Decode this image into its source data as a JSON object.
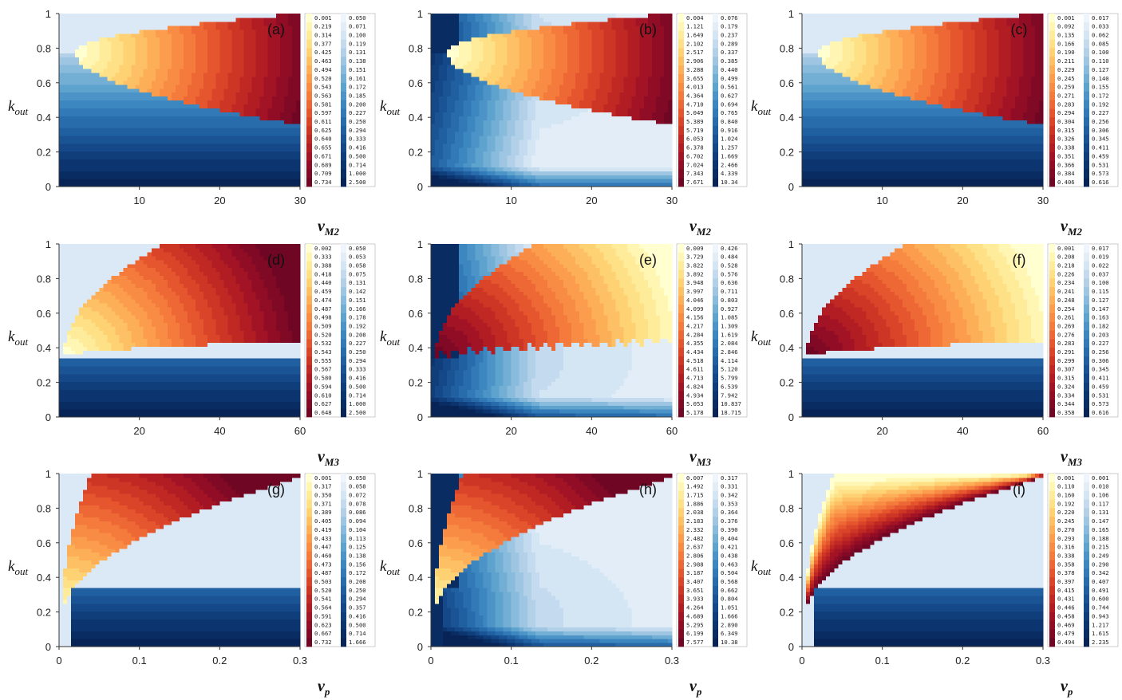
{
  "chart_data": [
    {
      "id": "a",
      "type": "heatmap",
      "panel_label": "(a)",
      "ylabel": "k",
      "ylabel_sub": "out",
      "xlabel": "v",
      "xlabel_sub": "M2",
      "xlim": [
        0,
        30
      ],
      "ylim": [
        0,
        1
      ],
      "xticks": [
        "10",
        "20",
        "30"
      ],
      "yticks": [
        "0",
        "0.2",
        "0.4",
        "0.6",
        "0.8",
        "1"
      ],
      "boundary": "cap",
      "cap": {
        "vertex_x": 2,
        "vertex_y": 0.78,
        "x_ref": 30,
        "y_top_ref": 1.0,
        "y_bot_ref": 0.36
      },
      "boundary_jagged": false,
      "interior_gradient": "radial",
      "exterior_gradient": "vertical",
      "colorbar_warm": [
        "0.001",
        "0.219",
        "0.314",
        "0.377",
        "0.425",
        "0.463",
        "0.494",
        "0.520",
        "0.543",
        "0.563",
        "0.581",
        "0.597",
        "0.611",
        "0.625",
        "0.640",
        "0.655",
        "0.671",
        "0.689",
        "0.709",
        "0.734"
      ],
      "colorbar_cool": [
        "0.050",
        "0.071",
        "0.100",
        "0.119",
        "0.131",
        "0.138",
        "0.151",
        "0.161",
        "0.172",
        "0.185",
        "0.200",
        "0.227",
        "0.250",
        "0.294",
        "0.333",
        "0.416",
        "0.500",
        "0.714",
        "1.000",
        "2.500"
      ]
    },
    {
      "id": "b",
      "type": "heatmap",
      "panel_label": "(b)",
      "ylabel": "k",
      "ylabel_sub": "out",
      "xlabel": "v",
      "xlabel_sub": "M2",
      "xlim": [
        0,
        30
      ],
      "ylim": [
        0,
        1
      ],
      "xticks": [
        "10",
        "20",
        "30"
      ],
      "yticks": [
        "0",
        "0.2",
        "0.4",
        "0.6",
        "0.8",
        "1"
      ],
      "boundary": "cap",
      "cap": {
        "vertex_x": 2,
        "vertex_y": 0.78,
        "x_ref": 30,
        "y_top_ref": 1.0,
        "y_bot_ref": 0.36
      },
      "boundary_jagged": false,
      "interior_gradient": "radial",
      "exterior_gradient": "arc-light",
      "colorbar_warm": [
        "0.004",
        "1.121",
        "1.649",
        "2.102",
        "2.517",
        "2.906",
        "3.288",
        "3.655",
        "4.013",
        "4.364",
        "4.710",
        "5.049",
        "5.389",
        "5.719",
        "6.053",
        "6.378",
        "6.702",
        "7.024",
        "7.343",
        "7.671"
      ],
      "colorbar_cool": [
        "0.076",
        "0.179",
        "0.237",
        "0.289",
        "0.337",
        "0.385",
        "0.440",
        "0.499",
        "0.561",
        "0.627",
        "0.694",
        "0.765",
        "0.840",
        "0.916",
        "1.024",
        "1.257",
        "1.669",
        "2.466",
        "4.339",
        "10.34"
      ]
    },
    {
      "id": "c",
      "type": "heatmap",
      "panel_label": "(c)",
      "ylabel": "k",
      "ylabel_sub": "out",
      "xlabel": "v",
      "xlabel_sub": "M2",
      "xlim": [
        0,
        30
      ],
      "ylim": [
        0,
        1
      ],
      "xticks": [
        "10",
        "20",
        "30"
      ],
      "yticks": [
        "0",
        "0.2",
        "0.4",
        "0.6",
        "0.8",
        "1"
      ],
      "boundary": "cap",
      "cap": {
        "vertex_x": 2,
        "vertex_y": 0.78,
        "x_ref": 30,
        "y_top_ref": 1.0,
        "y_bot_ref": 0.36
      },
      "boundary_jagged": false,
      "interior_gradient": "radial",
      "exterior_gradient": "vertical",
      "colorbar_warm": [
        "0.001",
        "0.092",
        "0.135",
        "0.166",
        "0.190",
        "0.211",
        "0.229",
        "0.245",
        "0.259",
        "0.271",
        "0.283",
        "0.294",
        "0.304",
        "0.315",
        "0.326",
        "0.338",
        "0.351",
        "0.366",
        "0.384",
        "0.406"
      ],
      "colorbar_cool": [
        "0.017",
        "0.033",
        "0.062",
        "0.085",
        "0.100",
        "0.110",
        "0.127",
        "0.140",
        "0.155",
        "0.172",
        "0.192",
        "0.227",
        "0.256",
        "0.306",
        "0.345",
        "0.411",
        "0.459",
        "0.531",
        "0.573",
        "0.616"
      ]
    },
    {
      "id": "d",
      "type": "heatmap",
      "panel_label": "(d)",
      "ylabel": "k",
      "ylabel_sub": "out",
      "xlabel": "v",
      "xlabel_sub": "M3",
      "xlim": [
        0,
        60
      ],
      "ylim": [
        0,
        1
      ],
      "xticks": [
        "20",
        "40",
        "60"
      ],
      "yticks": [
        "0",
        "0.2",
        "0.4",
        "0.6",
        "0.8",
        "1"
      ],
      "boundary": "cap",
      "cap": {
        "vertex_x": 1,
        "vertex_y": 0.35,
        "x_ref": 60,
        "y_top_ref": 1.35,
        "y_bot_ref": 0.44
      },
      "boundary_jagged": false,
      "interior_gradient": "radial",
      "exterior_gradient": "vertical",
      "colorbar_warm": [
        "0.002",
        "0.333",
        "0.388",
        "0.418",
        "0.440",
        "0.459",
        "0.474",
        "0.487",
        "0.498",
        "0.509",
        "0.520",
        "0.532",
        "0.543",
        "0.555",
        "0.567",
        "0.580",
        "0.594",
        "0.610",
        "0.627",
        "0.648"
      ],
      "colorbar_cool": [
        "0.050",
        "0.053",
        "0.058",
        "0.075",
        "0.131",
        "0.142",
        "0.151",
        "0.166",
        "0.178",
        "0.192",
        "0.208",
        "0.227",
        "0.250",
        "0.294",
        "0.333",
        "0.416",
        "0.500",
        "0.714",
        "1.000",
        "2.500"
      ]
    },
    {
      "id": "e",
      "type": "heatmap",
      "panel_label": "(e)",
      "ylabel": "k",
      "ylabel_sub": "out",
      "xlabel": "v",
      "xlabel_sub": "M3",
      "xlim": [
        0,
        60
      ],
      "ylim": [
        0,
        1
      ],
      "xticks": [
        "20",
        "40",
        "60"
      ],
      "yticks": [
        "0",
        "0.2",
        "0.4",
        "0.6",
        "0.8",
        "1"
      ],
      "boundary": "cap",
      "cap": {
        "vertex_x": 1,
        "vertex_y": 0.35,
        "x_ref": 60,
        "y_top_ref": 1.35,
        "y_bot_ref": 0.44
      },
      "boundary_jagged": true,
      "interior_gradient": "radial-inverted",
      "exterior_gradient": "arc-light",
      "colorbar_warm": [
        "0.009",
        "3.729",
        "3.822",
        "3.892",
        "3.948",
        "3.997",
        "4.046",
        "4.099",
        "4.156",
        "4.217",
        "4.284",
        "4.355",
        "4.434",
        "4.518",
        "4.611",
        "4.713",
        "4.824",
        "4.934",
        "5.053",
        "5.178"
      ],
      "colorbar_cool": [
        "0.426",
        "0.484",
        "0.528",
        "0.576",
        "0.636",
        "0.711",
        "0.803",
        "0.927",
        "1.085",
        "1.309",
        "1.619",
        "2.084",
        "2.846",
        "4.114",
        "5.120",
        "5.799",
        "6.539",
        "7.942",
        "10.837",
        "18.715"
      ]
    },
    {
      "id": "f",
      "type": "heatmap",
      "panel_label": "(f)",
      "ylabel": "k",
      "ylabel_sub": "out",
      "xlabel": "v",
      "xlabel_sub": "M3",
      "xlim": [
        0,
        60
      ],
      "ylim": [
        0,
        1
      ],
      "xticks": [
        "20",
        "40",
        "60"
      ],
      "yticks": [
        "0",
        "0.2",
        "0.4",
        "0.6",
        "0.8",
        "1"
      ],
      "boundary": "cap",
      "cap": {
        "vertex_x": 1,
        "vertex_y": 0.35,
        "x_ref": 60,
        "y_top_ref": 1.35,
        "y_bot_ref": 0.44
      },
      "boundary_jagged": false,
      "interior_gradient": "radial-inverted",
      "exterior_gradient": "vertical",
      "colorbar_warm": [
        "0.001",
        "0.208",
        "0.218",
        "0.226",
        "0.234",
        "0.241",
        "0.248",
        "0.254",
        "0.261",
        "0.269",
        "0.276",
        "0.283",
        "0.291",
        "0.299",
        "0.307",
        "0.315",
        "0.324",
        "0.334",
        "0.344",
        "0.358"
      ],
      "colorbar_cool": [
        "0.017",
        "0.019",
        "0.022",
        "0.037",
        "0.100",
        "0.115",
        "0.127",
        "0.147",
        "0.163",
        "0.182",
        "0.203",
        "0.227",
        "0.256",
        "0.306",
        "0.345",
        "0.411",
        "0.459",
        "0.531",
        "0.573",
        "0.616"
      ]
    },
    {
      "id": "g",
      "type": "heatmap",
      "panel_label": "(g)",
      "ylabel": "k",
      "ylabel_sub": "out",
      "xlabel": "v",
      "xlabel_sub": "p",
      "xlim": [
        0,
        0.3
      ],
      "ylim": [
        0,
        1
      ],
      "xticks": [
        "0",
        "0.1",
        "0.2",
        "0.3"
      ],
      "yticks": [
        "0",
        "0.2",
        "0.4",
        "0.6",
        "0.8",
        "1"
      ],
      "boundary": "wedge",
      "wedge": {
        "vertex_x": 0.003,
        "vertex_y": 0.15,
        "upper_x": 0.04,
        "lower_x": 0.3,
        "lower_y": 0.98
      },
      "boundary_jagged": false,
      "interior_gradient": "radial",
      "exterior_gradient": "vertical",
      "colorbar_warm": [
        "0.001",
        "0.317",
        "0.350",
        "0.371",
        "0.389",
        "0.405",
        "0.419",
        "0.433",
        "0.447",
        "0.460",
        "0.473",
        "0.487",
        "0.503",
        "0.520",
        "0.541",
        "0.564",
        "0.591",
        "0.623",
        "0.667",
        "0.732"
      ],
      "colorbar_cool": [
        "0.050",
        "0.058",
        "0.072",
        "0.078",
        "0.086",
        "0.094",
        "0.104",
        "0.113",
        "0.125",
        "0.138",
        "0.156",
        "0.172",
        "0.208",
        "0.250",
        "0.294",
        "0.357",
        "0.416",
        "0.500",
        "0.714",
        "1.666"
      ]
    },
    {
      "id": "h",
      "type": "heatmap",
      "panel_label": "(h)",
      "ylabel": "k",
      "ylabel_sub": "out",
      "xlabel": "v",
      "xlabel_sub": "p",
      "xlim": [
        0,
        0.3
      ],
      "ylim": [
        0,
        1
      ],
      "xticks": [
        "0",
        "0.1",
        "0.2",
        "0.3"
      ],
      "yticks": [
        "0",
        "0.2",
        "0.4",
        "0.6",
        "0.8",
        "1"
      ],
      "boundary": "wedge",
      "wedge": {
        "vertex_x": 0.003,
        "vertex_y": 0.15,
        "upper_x": 0.04,
        "lower_x": 0.3,
        "lower_y": 0.98
      },
      "boundary_jagged": false,
      "interior_gradient": "radial",
      "exterior_gradient": "arc-light",
      "colorbar_warm": [
        "0.007",
        "1.492",
        "1.715",
        "1.886",
        "2.038",
        "2.183",
        "2.332",
        "2.482",
        "2.637",
        "2.806",
        "2.988",
        "3.187",
        "3.407",
        "3.651",
        "3.933",
        "4.264",
        "4.689",
        "5.295",
        "6.199",
        "7.577"
      ],
      "colorbar_cool": [
        "0.317",
        "0.331",
        "0.342",
        "0.353",
        "0.364",
        "0.376",
        "0.390",
        "0.404",
        "0.421",
        "0.438",
        "0.463",
        "0.504",
        "0.568",
        "0.662",
        "0.804",
        "1.051",
        "1.666",
        "2.890",
        "6.349",
        "10.38"
      ]
    },
    {
      "id": "i",
      "type": "heatmap",
      "panel_label": "(i)",
      "ylabel": "k",
      "ylabel_sub": "out",
      "xlabel": "v",
      "xlabel_sub": "p",
      "xlim": [
        0,
        0.3
      ],
      "ylim": [
        0,
        1
      ],
      "xticks": [
        "0",
        "0.1",
        "0.2",
        "0.3"
      ],
      "yticks": [
        "0",
        "0.2",
        "0.4",
        "0.6",
        "0.8",
        "1"
      ],
      "boundary": "wedge",
      "wedge": {
        "vertex_x": 0.003,
        "vertex_y": 0.15,
        "upper_x": 0.04,
        "lower_x": 0.3,
        "lower_y": 0.98
      },
      "boundary_jagged": false,
      "interior_gradient": "diagonal",
      "exterior_gradient": "vertical",
      "colorbar_warm": [
        "0.001",
        "0.110",
        "0.160",
        "0.192",
        "0.220",
        "0.245",
        "0.270",
        "0.293",
        "0.316",
        "0.338",
        "0.358",
        "0.378",
        "0.397",
        "0.415",
        "0.431",
        "0.446",
        "0.458",
        "0.469",
        "0.479",
        "0.494"
      ],
      "colorbar_cool": [
        "0.001",
        "0.010",
        "0.106",
        "0.117",
        "0.131",
        "0.147",
        "0.165",
        "0.188",
        "0.215",
        "0.249",
        "0.290",
        "0.342",
        "0.407",
        "0.491",
        "0.600",
        "0.744",
        "0.943",
        "1.217",
        "1.615",
        "2.235"
      ]
    }
  ]
}
